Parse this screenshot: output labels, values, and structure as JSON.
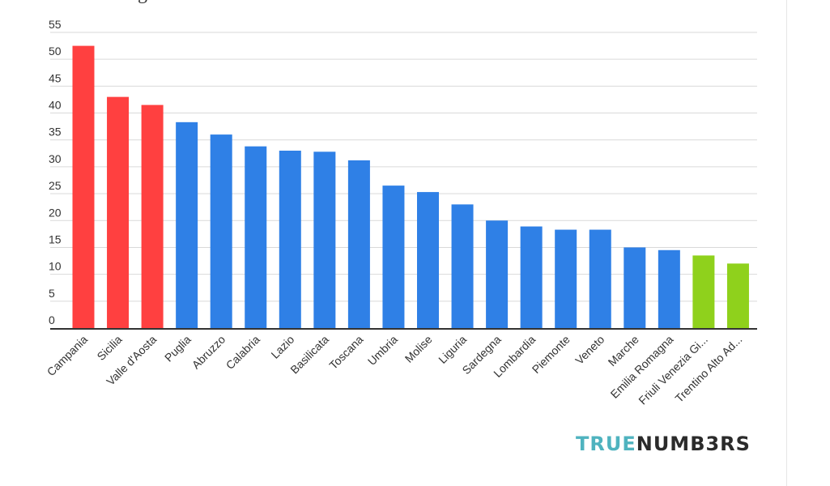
{
  "logo": {
    "part1": "TRUE",
    "part2": "NUMB3RS",
    "color1": "#4fb3bf",
    "color2": "#2b2b2b"
  },
  "chart_data": {
    "type": "bar",
    "categories": [
      "Campania",
      "Sicilia",
      "Valle d'Aosta",
      "Puglia",
      "Abruzzo",
      "Calabria",
      "Lazio",
      "Basilicata",
      "Toscana",
      "Umbria",
      "Molise",
      "Liguria",
      "Sardegna",
      "Lombardia",
      "Piemonte",
      "Veneto",
      "Marche",
      "Emilia Romagna",
      "Friuli Venezia Gi...",
      "Trentino Alto Ad..."
    ],
    "values": [
      52.5,
      43,
      41.5,
      38.3,
      36,
      33.8,
      33,
      32.8,
      31.2,
      26.5,
      25.3,
      23,
      20,
      18.9,
      18.3,
      18.3,
      15,
      14.5,
      13.5,
      12
    ],
    "colors": [
      "#ff4040",
      "#ff4040",
      "#ff4040",
      "#2f80e6",
      "#2f80e6",
      "#2f80e6",
      "#2f80e6",
      "#2f80e6",
      "#2f80e6",
      "#2f80e6",
      "#2f80e6",
      "#2f80e6",
      "#2f80e6",
      "#2f80e6",
      "#2f80e6",
      "#2f80e6",
      "#2f80e6",
      "#2f80e6",
      "#8fd11c",
      "#8fd11c"
    ],
    "yticks": [
      "0",
      "5",
      "10",
      "15",
      "20",
      "25",
      "30",
      "35",
      "40",
      "45",
      "50",
      "55"
    ],
    "ylim": [
      0,
      55
    ],
    "grid": true,
    "xlabel": "",
    "ylabel": ""
  }
}
